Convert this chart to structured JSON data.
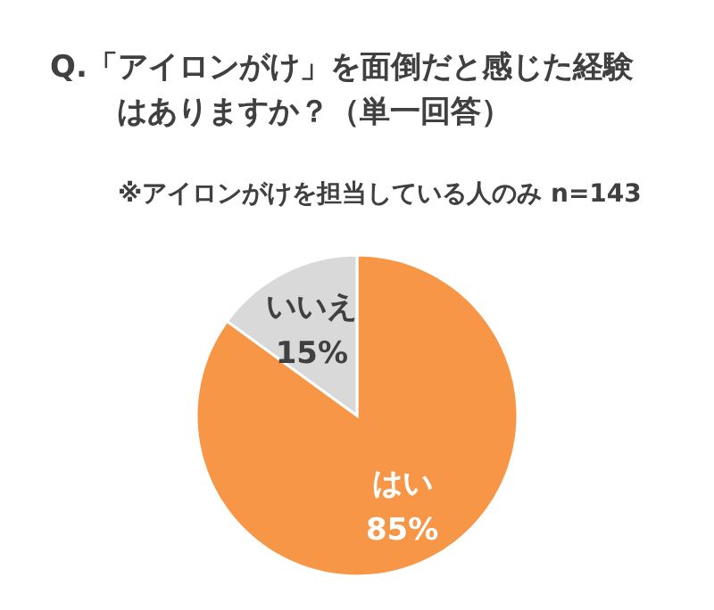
{
  "chart_data": {
    "type": "pie",
    "title": "Q.「アイロンがけ」を面倒だと感じた経験はありますか？（単一回答）",
    "subtitle": "※アイロンがけを担当している人のみ n=143",
    "categories": [
      "はい",
      "いいえ"
    ],
    "values": [
      85,
      15
    ],
    "value_labels": [
      "85%",
      "15%"
    ],
    "colors": [
      "#f79646",
      "#d9d9d9"
    ]
  }
}
